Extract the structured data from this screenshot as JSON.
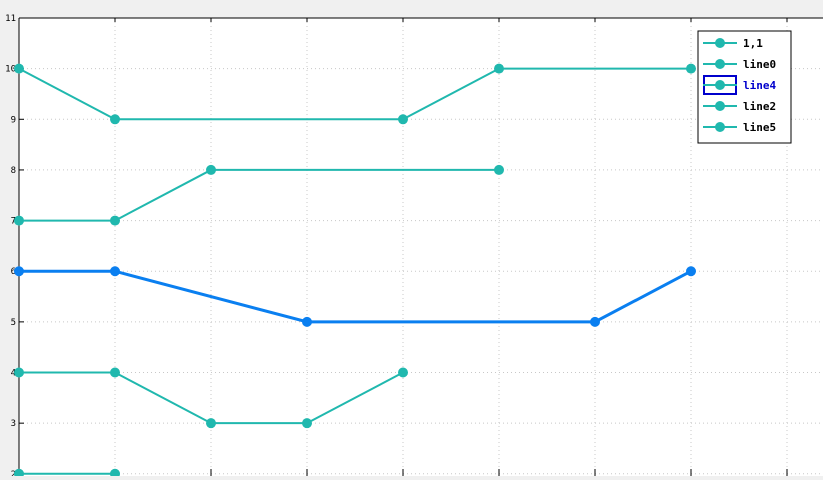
{
  "chart_data": {
    "type": "line",
    "title": "",
    "xlabel": "",
    "ylabel": "",
    "xlim": [
      0,
      10
    ],
    "ylim": [
      1.7,
      11
    ],
    "x_ticks": [
      0,
      1,
      2,
      3,
      4,
      5,
      6,
      7,
      8,
      9,
      10
    ],
    "y_ticks": [
      2,
      3,
      4,
      5,
      6,
      7,
      8,
      9,
      10,
      11
    ],
    "y_tick_labels": [
      "2",
      "3",
      "4",
      "5",
      "6",
      "7",
      "8",
      "9",
      "10",
      "11"
    ],
    "grid": true,
    "legend_position": "top-right",
    "highlighted_series": "line4",
    "colors": {
      "default_series": "#20b8ae",
      "highlighted_series": "#0a7ff0",
      "legend_highlight_box": "#0000cc",
      "legend_highlight_text": "#0000cc",
      "grid": "#c8c8c8",
      "plot_background": "#ffffff",
      "page_background": "#f0f0f0"
    },
    "series": [
      {
        "name": "1,1",
        "x": [
          0,
          1
        ],
        "y": [
          2,
          2
        ]
      },
      {
        "name": "line0",
        "x": [
          0,
          1,
          2,
          3,
          4
        ],
        "y": [
          4,
          4,
          3,
          3,
          4
        ]
      },
      {
        "name": "line4",
        "x": [
          0,
          1,
          3,
          6,
          7
        ],
        "y": [
          6,
          6,
          5,
          5,
          6
        ]
      },
      {
        "name": "line2",
        "x": [
          0,
          1,
          2,
          5
        ],
        "y": [
          7,
          7,
          8,
          8
        ]
      },
      {
        "name": "line5",
        "x": [
          0,
          1,
          4,
          5,
          7
        ],
        "y": [
          10,
          9,
          9,
          10,
          10
        ]
      }
    ]
  }
}
